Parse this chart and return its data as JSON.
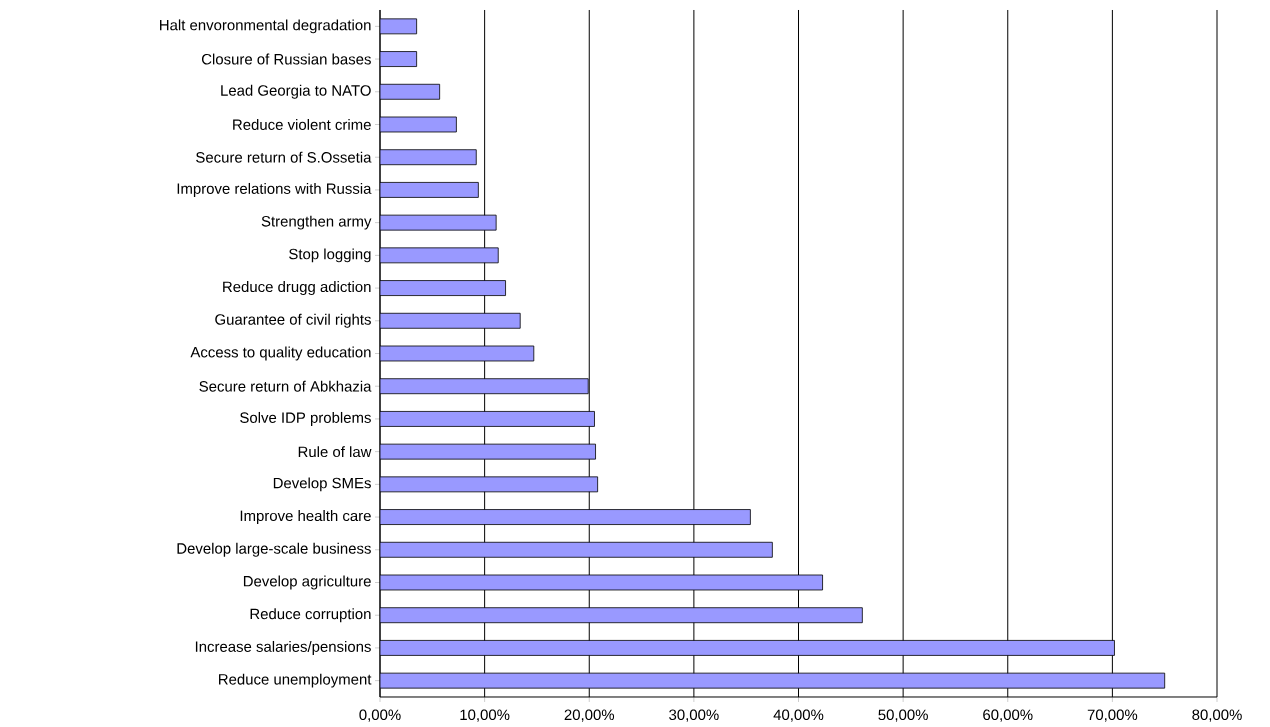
{
  "chart_data": {
    "type": "bar",
    "orientation": "horizontal",
    "categories": [
      "Halt envoronmental degradation",
      "Closure of Russian bases",
      "Lead Georgia to NATO",
      "Reduce violent crime",
      "Secure return of S.Ossetia",
      "Improve relations with Russia",
      "Strengthen army",
      "Stop logging",
      "Reduce drugg adiction",
      "Guarantee of civil rights",
      "Access to quality education",
      "Secure return of Abkhazia",
      "Solve IDP problems",
      "Rule of law",
      "Develop SMEs",
      "Improve health care",
      "Develop large-scale business",
      "Develop agriculture",
      "Reduce corruption",
      "Increase salaries/pensions",
      "Reduce unemployment"
    ],
    "values": [
      3.5,
      3.5,
      5.7,
      7.3,
      9.2,
      9.4,
      11.1,
      11.3,
      12.0,
      13.4,
      14.7,
      19.9,
      20.5,
      20.6,
      20.8,
      35.4,
      37.5,
      42.3,
      46.1,
      70.2,
      75.0
    ],
    "color": "#9999ff",
    "xlim": [
      0,
      80
    ],
    "xticks": [
      {
        "value": 0,
        "label": "0,00%"
      },
      {
        "value": 10,
        "label": "10,00%"
      },
      {
        "value": 20,
        "label": "20,00%"
      },
      {
        "value": 30,
        "label": "30,00%"
      },
      {
        "value": 40,
        "label": "40,00%"
      },
      {
        "value": 50,
        "label": "50,00%"
      },
      {
        "value": 60,
        "label": "60,00%"
      },
      {
        "value": 70,
        "label": "70,00%"
      },
      {
        "value": 80,
        "label": "80,00%"
      }
    ],
    "grid": "x"
  }
}
